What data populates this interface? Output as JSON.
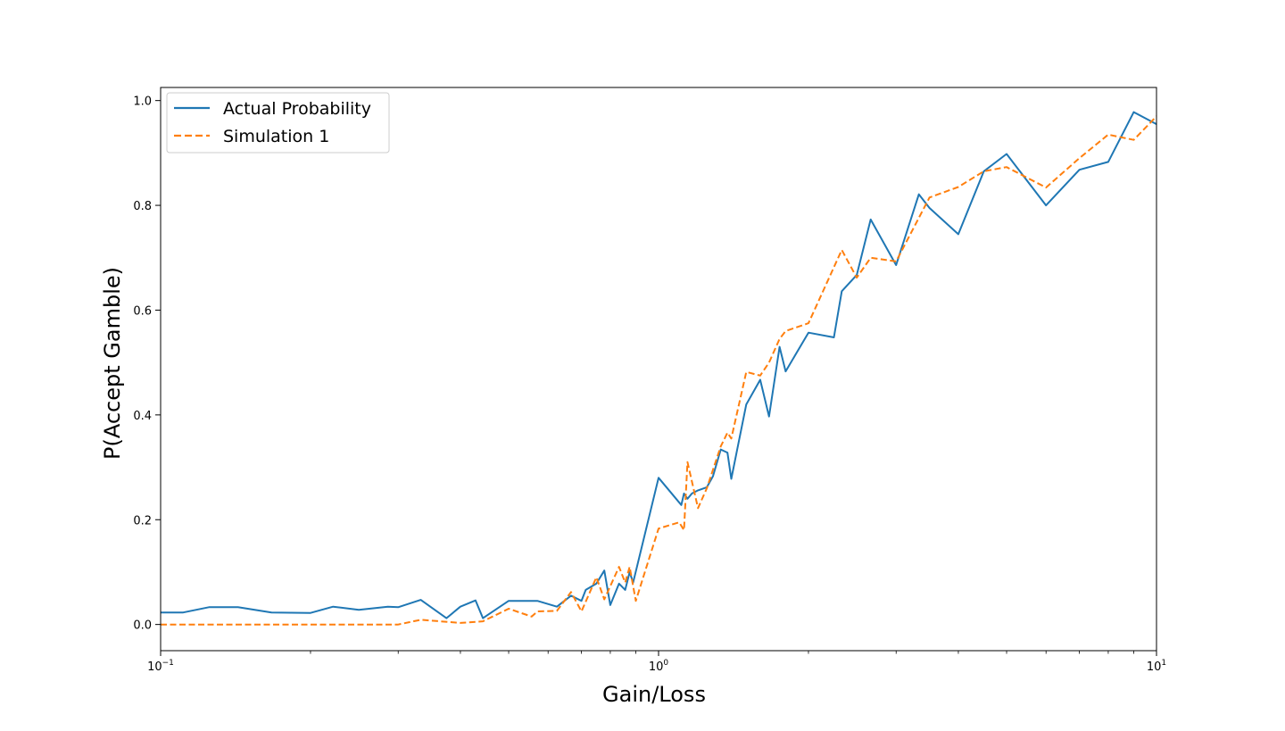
{
  "chart_data": {
    "type": "line",
    "title": "",
    "xlabel": "Gain/Loss",
    "ylabel": "P(Accept Gamble)",
    "xscale": "log",
    "xlim": [
      0.1,
      10
    ],
    "ylim": [
      -0.05,
      1.025
    ],
    "grid": false,
    "legend_position": "top-left",
    "x_ticks": [
      {
        "value": 0.1,
        "base": "10",
        "exp": "−1"
      },
      {
        "value": 1,
        "base": "10",
        "exp": "0"
      },
      {
        "value": 10,
        "base": "10",
        "exp": "1"
      }
    ],
    "y_ticks": [
      {
        "value": 0.0,
        "label": "0.0"
      },
      {
        "value": 0.2,
        "label": "0.2"
      },
      {
        "value": 0.4,
        "label": "0.4"
      },
      {
        "value": 0.6,
        "label": "0.6"
      },
      {
        "value": 0.8,
        "label": "0.8"
      },
      {
        "value": 1.0,
        "label": "1.0"
      }
    ],
    "series": [
      {
        "name": "Actual Probability",
        "color": "#1f77b4",
        "style": "solid",
        "x": [
          0.1,
          0.111,
          0.125,
          0.143,
          0.167,
          0.2,
          0.222,
          0.25,
          0.286,
          0.3,
          0.333,
          0.375,
          0.4,
          0.429,
          0.444,
          0.5,
          0.571,
          0.625,
          0.667,
          0.7,
          0.714,
          0.75,
          0.778,
          0.8,
          0.833,
          0.857,
          0.875,
          0.889,
          1.0,
          1.111,
          1.125,
          1.143,
          1.167,
          1.2,
          1.25,
          1.286,
          1.333,
          1.375,
          1.4,
          1.5,
          1.6,
          1.667,
          1.75,
          1.8,
          2.0,
          2.25,
          2.333,
          2.5,
          2.667,
          3.0,
          3.333,
          3.5,
          4.0,
          4.5,
          5.0,
          6.0,
          7.0,
          8.0,
          9.0,
          10.0
        ],
        "y": [
          0.023,
          0.023,
          0.033,
          0.033,
          0.023,
          0.022,
          0.034,
          0.028,
          0.034,
          0.033,
          0.047,
          0.012,
          0.034,
          0.046,
          0.012,
          0.045,
          0.045,
          0.034,
          0.055,
          0.045,
          0.066,
          0.078,
          0.103,
          0.037,
          0.078,
          0.066,
          0.1,
          0.08,
          0.28,
          0.228,
          0.25,
          0.24,
          0.25,
          0.256,
          0.262,
          0.283,
          0.334,
          0.328,
          0.278,
          0.42,
          0.467,
          0.397,
          0.53,
          0.483,
          0.557,
          0.548,
          0.636,
          0.667,
          0.773,
          0.686,
          0.821,
          0.795,
          0.745,
          0.865,
          0.898,
          0.8,
          0.868,
          0.883,
          0.978,
          0.955
        ]
      },
      {
        "name": "Simulation 1",
        "color": "#ff7f0e",
        "style": "dashed",
        "x": [
          0.1,
          0.125,
          0.167,
          0.2,
          0.25,
          0.3,
          0.333,
          0.4,
          0.444,
          0.5,
          0.556,
          0.571,
          0.625,
          0.667,
          0.7,
          0.75,
          0.778,
          0.833,
          0.857,
          0.875,
          0.9,
          1.0,
          1.1,
          1.125,
          1.143,
          1.2,
          1.25,
          1.333,
          1.375,
          1.4,
          1.5,
          1.6,
          1.667,
          1.75,
          1.8,
          2.0,
          2.333,
          2.5,
          2.667,
          3.0,
          3.5,
          4.0,
          4.5,
          5.0,
          6.0,
          7.0,
          8.0,
          9.0,
          10.0
        ],
        "y": [
          0.0,
          0.0,
          0.0,
          0.0,
          0.0,
          0.0,
          0.009,
          0.003,
          0.006,
          0.03,
          0.015,
          0.025,
          0.026,
          0.062,
          0.025,
          0.09,
          0.048,
          0.11,
          0.08,
          0.11,
          0.045,
          0.183,
          0.195,
          0.18,
          0.31,
          0.222,
          0.26,
          0.34,
          0.366,
          0.355,
          0.482,
          0.475,
          0.5,
          0.545,
          0.56,
          0.575,
          0.715,
          0.662,
          0.7,
          0.693,
          0.815,
          0.835,
          0.865,
          0.873,
          0.834,
          0.89,
          0.935,
          0.925,
          0.97
        ]
      }
    ]
  }
}
